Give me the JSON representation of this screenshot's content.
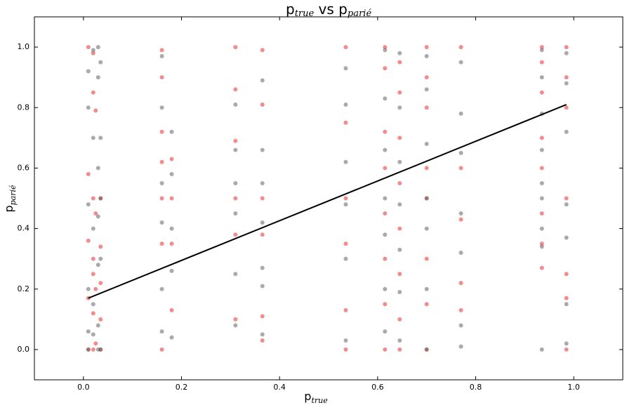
{
  "chart_data": {
    "type": "scatter",
    "title": {
      "p1": "p",
      "s1": "true",
      "p2": " vs p",
      "s2": "parié"
    },
    "x_label": {
      "p": "p",
      "s": "true"
    },
    "y_label": {
      "p": "p",
      "s": "parié"
    },
    "xlim": [
      -0.1,
      1.1
    ],
    "ylim": [
      -0.1,
      1.1
    ],
    "xticks": [
      {
        "value": 0,
        "label": "0.0"
      },
      0.2,
      0.4,
      0.6,
      0.8,
      {
        "value": 1,
        "label": "1.0"
      }
    ],
    "yticks": [
      {
        "value": 0,
        "label": "0.0"
      },
      0.2,
      0.4,
      0.6,
      0.8,
      {
        "value": 1,
        "label": "1.0"
      }
    ],
    "series": [
      {
        "color": "#e8191c",
        "x": [
          0.01,
          0.01,
          0.01,
          0.01,
          0.01,
          0.02,
          0.02,
          0.02,
          0.02,
          0.02,
          0.02,
          0.02,
          0.025,
          0.025,
          0.025,
          0.025,
          0.035,
          0.035,
          0.035,
          0.035,
          0.035,
          0.16,
          0.16,
          0.16,
          0.16,
          0.16,
          0.16,
          0.16,
          0.18,
          0.18,
          0.18,
          0.18,
          0.31,
          0.31,
          0.31,
          0.31,
          0.31,
          0.31,
          0.365,
          0.365,
          0.365,
          0.365,
          0.365,
          0.365,
          0.535,
          0.535,
          0.535,
          0.535,
          0.535,
          0.535,
          0.615,
          0.615,
          0.615,
          0.615,
          0.615,
          0.615,
          0.615,
          0.615,
          0.645,
          0.645,
          0.645,
          0.645,
          0.645,
          0.645,
          0.645,
          0.645,
          0.7,
          0.7,
          0.7,
          0.7,
          0.7,
          0.7,
          0.7,
          0.7,
          0.77,
          0.77,
          0.77,
          0.77,
          0.77,
          0.935,
          0.935,
          0.935,
          0.935,
          0.935,
          0.935,
          0.935,
          0.935,
          0.985,
          0.985,
          0.985,
          0.985,
          0.985,
          0.985,
          0.985
        ],
        "y": [
          0,
          0.58,
          0.36,
          1.0,
          0.17,
          0.98,
          0.85,
          0.5,
          0.3,
          0.12,
          0,
          0.25,
          0.79,
          0.45,
          0.2,
          0.02,
          0.5,
          0.34,
          0.22,
          0.1,
          0,
          0.99,
          0.9,
          0.72,
          0.62,
          0.5,
          0.35,
          0,
          0.63,
          0.5,
          0.35,
          0.13,
          1.0,
          0.86,
          0.69,
          0.5,
          0.38,
          0.1,
          0.99,
          0.81,
          0.5,
          0.38,
          0.11,
          0.03,
          1.0,
          0.75,
          0.5,
          0.35,
          0.13,
          0,
          1.0,
          0.93,
          0.72,
          0.6,
          0.45,
          0.3,
          0.15,
          0,
          0.95,
          0.85,
          0.7,
          0.55,
          0.4,
          0.25,
          0.1,
          0,
          1.0,
          0.9,
          0.8,
          0.6,
          0.5,
          0.3,
          0.15,
          0,
          1.0,
          0.6,
          0.43,
          0.22,
          0.13,
          1.0,
          0.95,
          0.85,
          0.7,
          0.6,
          0.45,
          0.35,
          0.27,
          1.0,
          0.9,
          0.8,
          0.5,
          0.25,
          0.17,
          0
        ]
      },
      {
        "color": "#555555",
        "x": [
          0.01,
          0.01,
          0.01,
          0.01,
          0.01,
          0.01,
          0.02,
          0.02,
          0.02,
          0.02,
          0.02,
          0.03,
          0.03,
          0.03,
          0.03,
          0.03,
          0.03,
          0.03,
          0.035,
          0.035,
          0.035,
          0.035,
          0.035,
          0.16,
          0.16,
          0.16,
          0.16,
          0.16,
          0.16,
          0.18,
          0.18,
          0.18,
          0.18,
          0.18,
          0.31,
          0.31,
          0.31,
          0.31,
          0.31,
          0.31,
          0.365,
          0.365,
          0.365,
          0.365,
          0.365,
          0.365,
          0.365,
          0.535,
          0.535,
          0.535,
          0.535,
          0.535,
          0.535,
          0.615,
          0.615,
          0.615,
          0.615,
          0.615,
          0.615,
          0.615,
          0.645,
          0.645,
          0.645,
          0.645,
          0.645,
          0.645,
          0.645,
          0.7,
          0.7,
          0.7,
          0.7,
          0.7,
          0.7,
          0.7,
          0.77,
          0.77,
          0.77,
          0.77,
          0.77,
          0.77,
          0.77,
          0.935,
          0.935,
          0.935,
          0.935,
          0.935,
          0.935,
          0.935,
          0.935,
          0.935,
          0.985,
          0.985,
          0.985,
          0.985,
          0.985,
          0.985,
          0.985
        ],
        "y": [
          0.92,
          0.8,
          0.48,
          0.2,
          0.06,
          0,
          0.99,
          0.7,
          0.4,
          0.15,
          0.05,
          1.0,
          0.9,
          0.6,
          0.44,
          0.28,
          0.08,
          0,
          0.95,
          0.7,
          0.5,
          0.3,
          0,
          0.97,
          0.8,
          0.55,
          0.42,
          0.2,
          0.06,
          0.72,
          0.58,
          0.4,
          0.26,
          0.04,
          0.81,
          0.66,
          0.55,
          0.45,
          0.25,
          0.08,
          0.89,
          0.66,
          0.55,
          0.42,
          0.27,
          0.21,
          0.05,
          0.93,
          0.81,
          0.62,
          0.48,
          0.3,
          0.03,
          0.99,
          0.83,
          0.66,
          0.5,
          0.38,
          0.2,
          0.06,
          0.98,
          0.8,
          0.62,
          0.48,
          0.33,
          0.19,
          0.03,
          0.97,
          0.86,
          0.68,
          0.5,
          0.4,
          0.2,
          0,
          0.95,
          0.78,
          0.65,
          0.45,
          0.32,
          0.08,
          0.01,
          0.99,
          0.9,
          0.78,
          0.66,
          0.55,
          0.5,
          0.4,
          0.34,
          0,
          0.98,
          0.88,
          0.72,
          0.48,
          0.37,
          0.15,
          0.02
        ]
      }
    ],
    "fit_line": {
      "color": "#000000",
      "x": [
        0.01,
        0.985
      ],
      "y": [
        0.17,
        0.81
      ]
    }
  }
}
